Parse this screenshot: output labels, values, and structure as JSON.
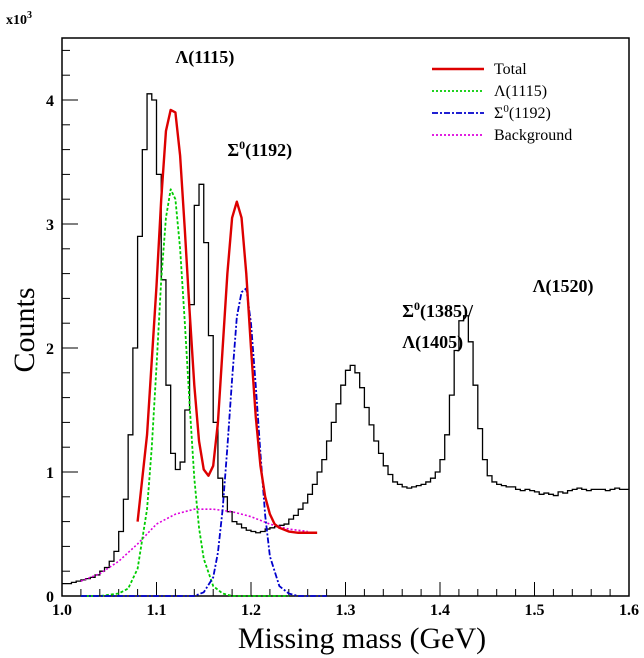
{
  "chart_data": {
    "type": "line",
    "xlabel": "Missing mass (GeV)",
    "ylabel": "Counts",
    "y_multiplier": "x10",
    "y_multiplier_exp": "3",
    "xlim": [
      1.0,
      1.6
    ],
    "ylim": [
      0,
      4.5
    ],
    "x_ticks": [
      "1.0",
      "1.1",
      "1.2",
      "1.3",
      "1.4",
      "1.5",
      "1.6"
    ],
    "x_tick_values": [
      1.0,
      1.1,
      1.2,
      1.3,
      1.4,
      1.5,
      1.6
    ],
    "y_ticks": [
      "0",
      "1",
      "2",
      "3",
      "4"
    ],
    "y_tick_values": [
      0,
      1,
      2,
      3,
      4
    ],
    "grid": false,
    "legend_position": "top-right",
    "legend": [
      {
        "label": "Total",
        "color": "#dd0000",
        "dash": "solid"
      },
      {
        "label": "Λ(1115)",
        "color": "#00cc00",
        "dash": "dotted"
      },
      {
        "label_base": "Σ",
        "label_sup": "0",
        "label_rest": "(1192)",
        "color": "#0000cc",
        "dash": "dashdot"
      },
      {
        "label": "Background",
        "color": "#dd00dd",
        "dash": "dotted"
      }
    ],
    "annotations": [
      {
        "base": "Λ(",
        "bold": "1115",
        "tail": ")",
        "x": 1.12,
        "y": 4.3
      },
      {
        "base": "Σ",
        "sup": "0",
        "bold": "(1192)",
        "x": 1.175,
        "y": 3.55
      },
      {
        "base": "Σ",
        "sup": "0",
        "bold": "(1385)/",
        "x": 1.36,
        "y": 2.25
      },
      {
        "base": "Λ(",
        "bold": "1405",
        "tail": ")",
        "x": 1.36,
        "y": 2.0
      },
      {
        "base": "Λ(",
        "bold": "1520",
        "tail": ")",
        "x": 1.498,
        "y": 2.45
      }
    ],
    "histogram": {
      "name": "Data",
      "color": "#000000",
      "bin_width": 0.005,
      "x_start": 1.0,
      "values": [
        0.1,
        0.1,
        0.11,
        0.12,
        0.13,
        0.14,
        0.15,
        0.17,
        0.2,
        0.23,
        0.28,
        0.36,
        0.52,
        0.78,
        1.3,
        2.0,
        2.9,
        3.6,
        4.05,
        4.0,
        3.4,
        2.55,
        1.7,
        1.15,
        1.02,
        1.08,
        1.5,
        2.35,
        3.15,
        3.32,
        2.85,
        2.1,
        1.4,
        0.95,
        0.8,
        0.68,
        0.6,
        0.58,
        0.55,
        0.53,
        0.52,
        0.51,
        0.52,
        0.54,
        0.55,
        0.56,
        0.57,
        0.58,
        0.62,
        0.65,
        0.7,
        0.75,
        0.82,
        0.9,
        1.0,
        1.1,
        1.25,
        1.4,
        1.55,
        1.7,
        1.82,
        1.86,
        1.8,
        1.68,
        1.52,
        1.38,
        1.25,
        1.15,
        1.05,
        0.98,
        0.92,
        0.9,
        0.88,
        0.87,
        0.88,
        0.89,
        0.9,
        0.92,
        0.95,
        1.0,
        1.1,
        1.3,
        1.62,
        1.98,
        2.22,
        2.26,
        2.05,
        1.7,
        1.35,
        1.1,
        0.97,
        0.92,
        0.9,
        0.89,
        0.88,
        0.88,
        0.86,
        0.85,
        0.86,
        0.85,
        0.84,
        0.82,
        0.83,
        0.82,
        0.81,
        0.84,
        0.83,
        0.85,
        0.86,
        0.87,
        0.86,
        0.85,
        0.86,
        0.86,
        0.86,
        0.85,
        0.86,
        0.87,
        0.86,
        0.86
      ]
    },
    "series": [
      {
        "key": "total",
        "color": "#dd0000",
        "x": [
          1.08,
          1.09,
          1.1,
          1.105,
          1.11,
          1.115,
          1.12,
          1.125,
          1.13,
          1.135,
          1.14,
          1.145,
          1.15,
          1.155,
          1.16,
          1.165,
          1.17,
          1.175,
          1.18,
          1.185,
          1.19,
          1.195,
          1.2,
          1.205,
          1.21,
          1.215,
          1.22,
          1.225,
          1.23,
          1.24,
          1.25,
          1.26,
          1.27
        ],
        "y": [
          0.6,
          1.3,
          2.5,
          3.2,
          3.75,
          3.92,
          3.9,
          3.55,
          2.95,
          2.3,
          1.7,
          1.25,
          1.02,
          0.97,
          1.05,
          1.4,
          2.0,
          2.6,
          3.05,
          3.18,
          3.05,
          2.6,
          2.0,
          1.45,
          1.05,
          0.8,
          0.66,
          0.58,
          0.55,
          0.52,
          0.51,
          0.51,
          0.51
        ]
      },
      {
        "key": "lambda1115",
        "color": "#00cc00",
        "x": [
          1.02,
          1.04,
          1.06,
          1.07,
          1.08,
          1.09,
          1.095,
          1.1,
          1.105,
          1.11,
          1.115,
          1.12,
          1.125,
          1.13,
          1.135,
          1.14,
          1.145,
          1.15,
          1.16,
          1.17,
          1.18,
          1.19,
          1.2,
          1.22,
          1.24
        ],
        "y": [
          0.0,
          0.0,
          0.02,
          0.06,
          0.22,
          0.7,
          1.2,
          1.85,
          2.55,
          3.05,
          3.28,
          3.2,
          2.8,
          2.2,
          1.55,
          0.95,
          0.55,
          0.3,
          0.08,
          0.02,
          0.0,
          0.0,
          0.0,
          0.0,
          0.0
        ]
      },
      {
        "key": "sigma1192",
        "color": "#0000cc",
        "x": [
          1.02,
          1.1,
          1.14,
          1.15,
          1.16,
          1.165,
          1.17,
          1.175,
          1.18,
          1.185,
          1.19,
          1.195,
          1.2,
          1.205,
          1.21,
          1.215,
          1.22,
          1.23,
          1.24,
          1.25,
          1.28
        ],
        "y": [
          0.0,
          0.0,
          0.0,
          0.03,
          0.15,
          0.35,
          0.7,
          1.2,
          1.75,
          2.25,
          2.45,
          2.48,
          2.2,
          1.7,
          1.15,
          0.65,
          0.32,
          0.08,
          0.02,
          0.0,
          0.0
        ]
      },
      {
        "key": "background",
        "color": "#dd00dd",
        "x": [
          1.02,
          1.04,
          1.06,
          1.08,
          1.1,
          1.12,
          1.14,
          1.16,
          1.18,
          1.2,
          1.22,
          1.24,
          1.26
        ],
        "y": [
          0.12,
          0.18,
          0.28,
          0.42,
          0.58,
          0.66,
          0.7,
          0.7,
          0.68,
          0.64,
          0.58,
          0.54,
          0.52
        ]
      }
    ]
  }
}
